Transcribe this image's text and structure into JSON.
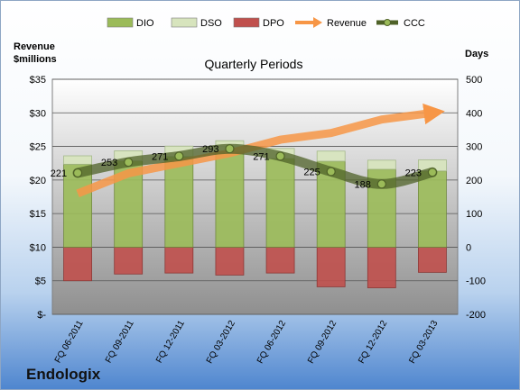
{
  "chart_data": {
    "type": "bar",
    "title": "Quarterly Periods",
    "company": "Endologix",
    "left_axis_title": [
      "Revenue",
      "$millions"
    ],
    "right_axis_title": "Days",
    "left_ticks": [
      "$-",
      "$5",
      "$10",
      "$15",
      "$20",
      "$25",
      "$30",
      "$35"
    ],
    "right_ticks": [
      "-200",
      "-100",
      "0",
      "100",
      "200",
      "300",
      "400",
      "500"
    ],
    "left_ylim": [
      0,
      35
    ],
    "right_ylim": [
      -200,
      500
    ],
    "categories": [
      "FQ 06-2011",
      "FQ 09-2011",
      "FQ 12-2011",
      "FQ 03-2012",
      "FQ 06-2012",
      "FQ 09-2012",
      "FQ 12-2012",
      "FQ 03-2013"
    ],
    "legend": [
      "DIO",
      "DSO",
      "DPO",
      "Revenue",
      "CCC"
    ],
    "legend_position": "top",
    "grid": true,
    "series": [
      {
        "name": "DIO",
        "axis": "right",
        "values": [
          247,
          257,
          270,
          285,
          264,
          256,
          232,
          227
        ]
      },
      {
        "name": "DSO",
        "axis": "right",
        "values": [
          25,
          30,
          31,
          32,
          30,
          30,
          27,
          33
        ]
      },
      {
        "name": "DPO",
        "axis": "right",
        "values": [
          -100,
          -80,
          -77,
          -83,
          -77,
          -118,
          -121,
          -75
        ]
      },
      {
        "name": "Revenue",
        "axis": "left",
        "values": [
          18,
          21,
          22.5,
          24,
          26,
          27,
          29,
          30
        ]
      },
      {
        "name": "CCC",
        "axis": "right",
        "values": [
          221,
          253,
          271,
          293,
          271,
          225,
          188,
          223
        ],
        "labels": [
          "221",
          "253",
          "271",
          "293",
          "271",
          "225",
          "188",
          "223"
        ]
      }
    ],
    "colors": {
      "DIO": "#9bbb59",
      "DSO": "#d7e4bd",
      "DPO": "#c0504d",
      "Revenue": "#f79646",
      "CCC": "#4f6228"
    }
  }
}
